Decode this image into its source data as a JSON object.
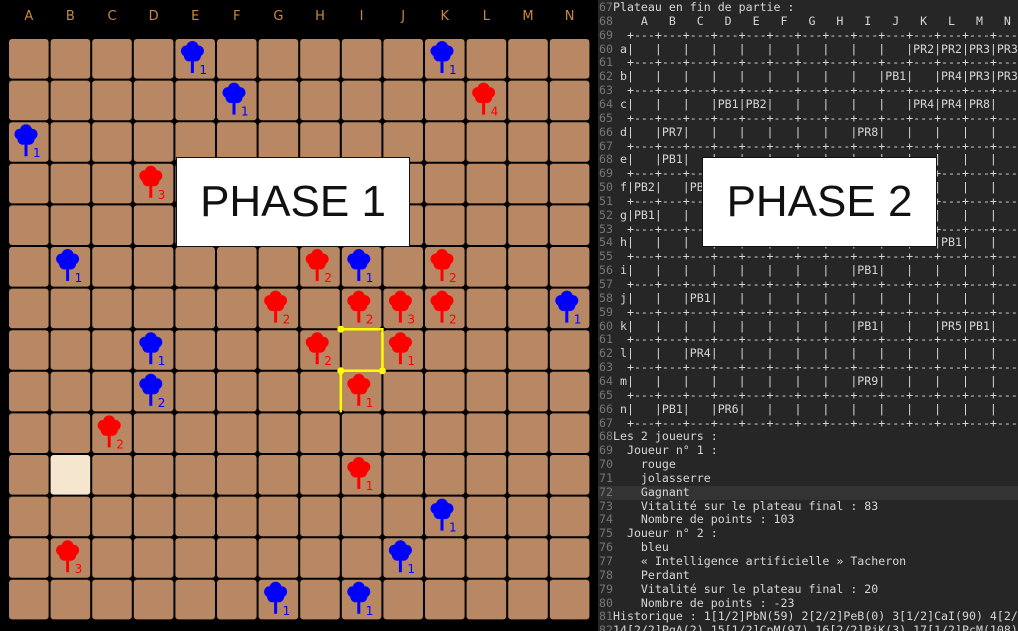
{
  "board": {
    "columns": [
      "A",
      "B",
      "C",
      "D",
      "E",
      "F",
      "G",
      "H",
      "I",
      "J",
      "K",
      "L",
      "M",
      "N"
    ],
    "rows": 14,
    "colors": {
      "cell": "#b88865",
      "dot": "#000000",
      "red": "#ff0000",
      "blue": "#0000ff",
      "highlight": "#f5e6d0",
      "selection": "#ffff00",
      "label": "#c68a45"
    },
    "selected_cell": {
      "col": 1,
      "row": 10
    },
    "trees": [
      {
        "col": 4,
        "row": 0,
        "color": "blue",
        "n": "1"
      },
      {
        "col": 10,
        "row": 0,
        "color": "blue",
        "n": "1"
      },
      {
        "col": 5,
        "row": 1,
        "color": "blue",
        "n": "1"
      },
      {
        "col": 11,
        "row": 1,
        "color": "red",
        "n": "4"
      },
      {
        "col": 0,
        "row": 2,
        "color": "blue",
        "n": "1"
      },
      {
        "col": 3,
        "row": 3,
        "color": "red",
        "n": "3"
      },
      {
        "col": 1,
        "row": 5,
        "color": "blue",
        "n": "1"
      },
      {
        "col": 7,
        "row": 5,
        "color": "red",
        "n": "2"
      },
      {
        "col": 8,
        "row": 5,
        "color": "blue",
        "n": "1"
      },
      {
        "col": 10,
        "row": 5,
        "color": "red",
        "n": "2"
      },
      {
        "col": 6,
        "row": 6,
        "color": "red",
        "n": "2"
      },
      {
        "col": 8,
        "row": 6,
        "color": "red",
        "n": "2"
      },
      {
        "col": 9,
        "row": 6,
        "color": "red",
        "n": "3"
      },
      {
        "col": 10,
        "row": 6,
        "color": "red",
        "n": "2"
      },
      {
        "col": 13,
        "row": 6,
        "color": "blue",
        "n": "1"
      },
      {
        "col": 3,
        "row": 7,
        "color": "blue",
        "n": "1"
      },
      {
        "col": 7,
        "row": 7,
        "color": "red",
        "n": "2"
      },
      {
        "col": 9,
        "row": 7,
        "color": "red",
        "n": "1"
      },
      {
        "col": 3,
        "row": 8,
        "color": "blue",
        "n": "2"
      },
      {
        "col": 8,
        "row": 8,
        "color": "red",
        "n": "1"
      },
      {
        "col": 2,
        "row": 9,
        "color": "red",
        "n": "2"
      },
      {
        "col": 8,
        "row": 10,
        "color": "red",
        "n": "1"
      },
      {
        "col": 10,
        "row": 11,
        "color": "blue",
        "n": "1"
      },
      {
        "col": 1,
        "row": 12,
        "color": "red",
        "n": "3"
      },
      {
        "col": 9,
        "row": 12,
        "color": "blue",
        "n": "1"
      },
      {
        "col": 6,
        "row": 13,
        "color": "blue",
        "n": "1"
      },
      {
        "col": 8,
        "row": 13,
        "color": "blue",
        "n": "1"
      }
    ]
  },
  "phase1_label": "PHASE 1",
  "phase2_label": "PHASE 2",
  "terminal": {
    "lines": [
      {
        "n": "67",
        "t": "Plateau en fin de partie :"
      },
      {
        "n": "68",
        "t": "    A   B   C   D   E   F   G   H   I   J   K   L   M   N"
      },
      {
        "n": "69",
        "t": "  +---+---+---+---+---+---+---+---+---+---+---+---+---+---+"
      },
      {
        "n": "60",
        "t": " a|   |   |   |   |   |   |   |   |   |   |PR2|PR2|PR3|PR3|"
      },
      {
        "n": "61",
        "t": "  +---+---+---+---+---+---+---+---+---+---+---+---+---+---+"
      },
      {
        "n": "62",
        "t": " b|   |   |   |   |   |   |   |   |   |PB1|   |PR4|PR3|PR3|"
      },
      {
        "n": "63",
        "t": "  +---+---+---+---+---+---+---+---+---+---+---+---+---+---+"
      },
      {
        "n": "64",
        "t": " c|   |   |   |PB1|PB2|   |   |   |   |   |PR4|PR4|PR8|"
      },
      {
        "n": "65",
        "t": "  +---+---+---+---+---+---+---+---+---+---+---+---+---+---+"
      },
      {
        "n": "66",
        "t": " d|   |PR7|   |   |   |   |   |   |PR8|   |   |   |   |"
      },
      {
        "n": "67",
        "t": "  +---+---+---+---+---+---+---+---+---+---+---+---+---+---+"
      },
      {
        "n": "68",
        "t": " e|   |PB1|   |   |   |   |   |   |   |   |   |   |   |"
      },
      {
        "n": "69",
        "t": "  +---+---+---+---+---+---+---+---+---+---+---+---+---+---+"
      },
      {
        "n": "50",
        "t": " f|PB2|   |PB1|   |   |   |   |   |   |   |   |   |   |"
      },
      {
        "n": "51",
        "t": "  +---+---+---+---+---+---+---+---+---+---+---+---+---+---+"
      },
      {
        "n": "52",
        "t": " g|PB1|   |   |   |   |   |   |   |   |   |   |   |   |"
      },
      {
        "n": "53",
        "t": "  +---+---+---+---+---+---+---+---+---+---+---+---+---+---+"
      },
      {
        "n": "54",
        "t": " h|   |   |   |   |   |   |   |   |   |   |   |PB1|   |"
      },
      {
        "n": "55",
        "t": "  +---+---+---+---+---+---+---+---+---+---+---+---+---+---+"
      },
      {
        "n": "56",
        "t": " i|   |   |   |   |   |   |   |   |PB1|   |   |   |   |"
      },
      {
        "n": "57",
        "t": "  +---+---+---+---+---+---+---+---+---+---+---+---+---+---+"
      },
      {
        "n": "58",
        "t": " j|   |   |PB1|   |   |   |   |   |   |   |   |   |   |"
      },
      {
        "n": "59",
        "t": "  +---+---+---+---+---+---+---+---+---+---+---+---+---+---+"
      },
      {
        "n": "60",
        "t": " k|   |   |   |   |   |   |   |   |PB1|   |   |PR5|PB1|"
      },
      {
        "n": "61",
        "t": "  +---+---+---+---+---+---+---+---+---+---+---+---+---+---+"
      },
      {
        "n": "62",
        "t": " l|   |   |PR4|   |   |   |   |   |   |   |   |   |   |"
      },
      {
        "n": "63",
        "t": "  +---+---+---+---+---+---+---+---+---+---+---+---+---+---+"
      },
      {
        "n": "64",
        "t": " m|   |   |   |   |   |   |   |   |PR9|   |   |   |   |"
      },
      {
        "n": "65",
        "t": "  +---+---+---+---+---+---+---+---+---+---+---+---+---+---+"
      },
      {
        "n": "66",
        "t": " n|   |PB1|   |PR6|   |   |   |   |   |   |   |   |   |"
      },
      {
        "n": "67",
        "t": "  +---+---+---+---+---+---+---+---+---+---+---+---+---+---+"
      },
      {
        "n": "68",
        "t": "Les 2 joueurs :"
      },
      {
        "n": "69",
        "t": "  Joueur n° 1 :"
      },
      {
        "n": "70",
        "t": "    rouge"
      },
      {
        "n": "71",
        "t": "    jolasserre"
      },
      {
        "n": "72",
        "t": "    Gagnant",
        "hl": true
      },
      {
        "n": "73",
        "t": "    Vitalité sur le plateau final : 83"
      },
      {
        "n": "74",
        "t": "    Nombre de points : 103"
      },
      {
        "n": "75",
        "t": "  Joueur n° 2 :"
      },
      {
        "n": "76",
        "t": "    bleu"
      },
      {
        "n": "77",
        "t": "    « Intelligence artificielle » Tacheron"
      },
      {
        "n": "78",
        "t": "    Perdant"
      },
      {
        "n": "79",
        "t": "    Vitalité sur le plateau final : 20"
      },
      {
        "n": "80",
        "t": "    Nombre de points : -23"
      },
      {
        "n": "81",
        "t": "Historique : 1[1/2]PbN(59) 2[2/2]PeB(0) 3[1/2]CaI(90) 4[2/2]"
      },
      {
        "n": "82",
        "t": "14[2/2]PqA(2) 15[1/2]CpM(97) 16[2/2]PjK(3) 17[1/2]PcM(108)"
      }
    ]
  }
}
